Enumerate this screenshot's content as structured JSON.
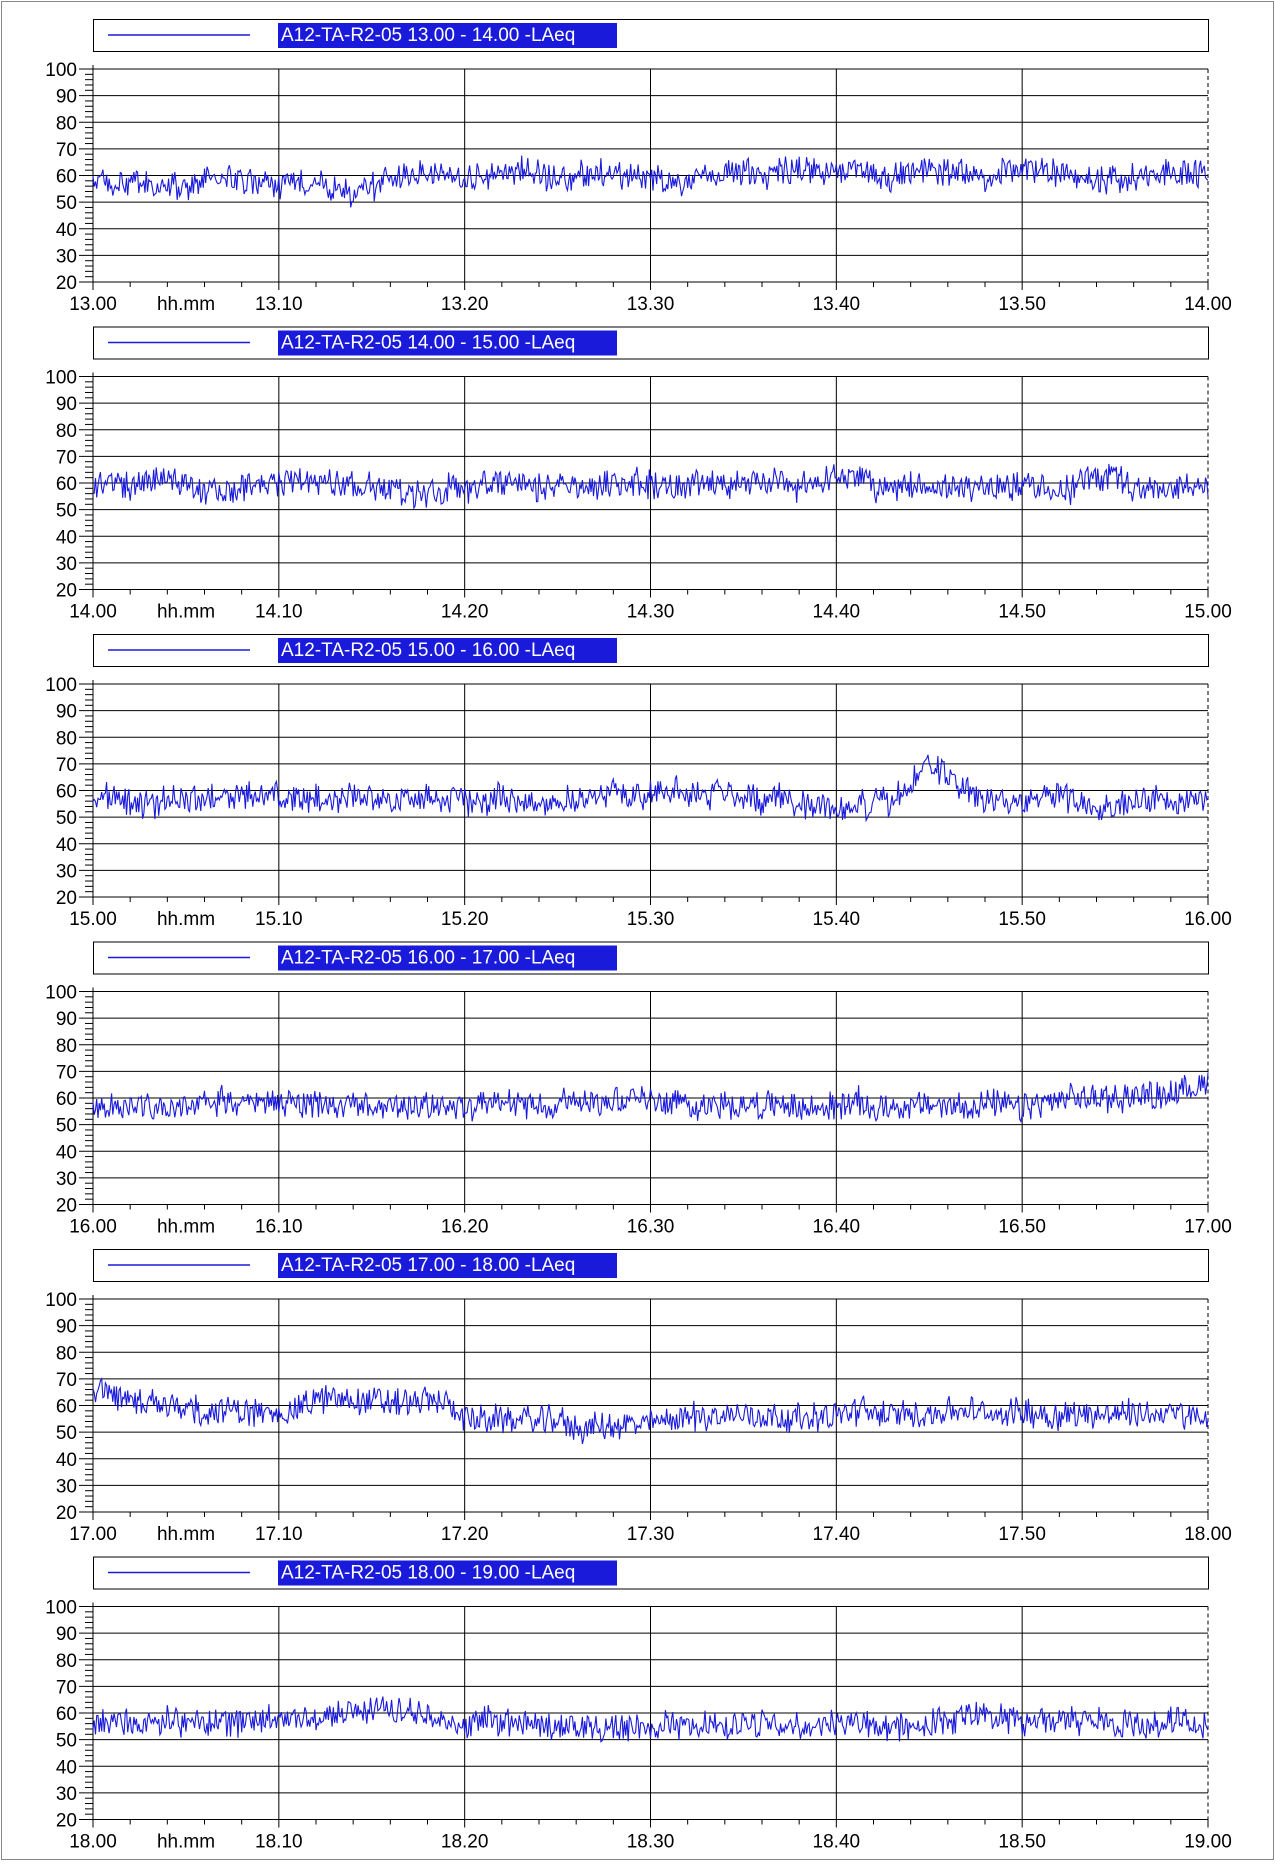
{
  "colors": {
    "series": "#1a1adb",
    "axis": "#000000",
    "legend_highlight": "#1a1adb",
    "legend_text": "#ffffff",
    "background": "#ffffff"
  },
  "chart_data": [
    {
      "type": "line",
      "legend": "A12-TA-R2-05 13.00 - 14.00 -LAeq",
      "xlabel": "hh.mm",
      "x_ticks": [
        "13.00",
        "13.10",
        "13.20",
        "13.30",
        "13.40",
        "13.50",
        "14.00"
      ],
      "y_ticks": [
        "20",
        "30",
        "40",
        "50",
        "60",
        "70",
        "80",
        "90",
        "100"
      ],
      "ylim": [
        20,
        100
      ],
      "x_range_minutes": [
        0,
        60
      ],
      "grid": true,
      "series": [
        {
          "values": [
            58,
            56,
            57,
            56,
            55,
            56,
            58,
            59,
            58,
            57,
            56,
            57,
            58,
            55,
            53,
            56,
            59,
            60,
            61,
            60,
            59,
            60,
            61,
            62,
            60,
            59,
            60,
            61,
            61,
            59,
            60,
            58,
            56,
            59,
            61,
            62,
            60,
            61,
            62,
            61,
            62,
            62,
            60,
            59,
            61,
            62,
            61,
            62,
            60,
            61,
            63,
            62,
            61,
            60,
            58,
            59,
            60,
            61,
            62,
            60,
            61
          ]
        }
      ]
    },
    {
      "type": "line",
      "legend": "A12-TA-R2-05 14.00 - 15.00 -LAeq",
      "xlabel": "hh.mm",
      "x_ticks": [
        "14.00",
        "14.10",
        "14.20",
        "14.30",
        "14.40",
        "14.50",
        "15.00"
      ],
      "y_ticks": [
        "20",
        "30",
        "40",
        "50",
        "60",
        "70",
        "80",
        "90",
        "100"
      ],
      "ylim": [
        20,
        100
      ],
      "x_range_minutes": [
        0,
        60
      ],
      "grid": true,
      "series": [
        {
          "values": [
            60,
            60,
            58,
            61,
            62,
            61,
            58,
            57,
            59,
            60,
            60,
            62,
            61,
            60,
            59,
            58,
            58,
            57,
            56,
            58,
            58,
            59,
            60,
            60,
            58,
            58,
            58,
            59,
            60,
            60,
            59,
            60,
            59,
            60,
            59,
            60,
            60,
            62,
            58,
            60,
            63,
            62,
            58,
            58,
            59,
            58,
            59,
            58,
            59,
            59,
            59,
            58,
            57,
            59,
            63,
            62,
            58,
            57,
            57,
            58,
            58
          ]
        }
      ]
    },
    {
      "type": "line",
      "legend": "A12-TA-R2-05 15.00 - 16.00 -LAeq",
      "xlabel": "hh.mm",
      "x_ticks": [
        "15.00",
        "15.10",
        "15.20",
        "15.30",
        "15.40",
        "15.50",
        "16.00"
      ],
      "y_ticks": [
        "20",
        "30",
        "40",
        "50",
        "60",
        "70",
        "80",
        "90",
        "100"
      ],
      "ylim": [
        20,
        100
      ],
      "x_range_minutes": [
        0,
        60
      ],
      "grid": true,
      "series": [
        {
          "values": [
            56,
            58,
            56,
            55,
            56,
            57,
            57,
            57,
            58,
            58,
            58,
            57,
            57,
            56,
            58,
            57,
            57,
            56,
            58,
            57,
            56,
            56,
            57,
            57,
            55,
            56,
            57,
            57,
            59,
            59,
            59,
            60,
            59,
            58,
            60,
            58,
            56,
            58,
            55,
            55,
            53,
            54,
            55,
            56,
            62,
            70,
            65,
            61,
            55,
            56,
            55,
            59,
            58,
            56,
            55,
            55,
            56,
            57,
            56,
            57,
            56
          ]
        }
      ]
    },
    {
      "type": "line",
      "legend": "A12-TA-R2-05 16.00 - 17.00 -LAeq",
      "xlabel": "hh.mm",
      "x_ticks": [
        "16.00",
        "16.10",
        "16.20",
        "16.30",
        "16.40",
        "16.50",
        "17.00"
      ],
      "y_ticks": [
        "20",
        "30",
        "40",
        "50",
        "60",
        "70",
        "80",
        "90",
        "100"
      ],
      "ylim": [
        20,
        100
      ],
      "x_range_minutes": [
        0,
        60
      ],
      "grid": true,
      "series": [
        {
          "values": [
            55,
            57,
            58,
            57,
            56,
            57,
            58,
            59,
            59,
            58,
            59,
            58,
            58,
            57,
            57,
            56,
            57,
            57,
            57,
            58,
            56,
            57,
            58,
            58,
            57,
            58,
            59,
            59,
            60,
            60,
            59,
            59,
            58,
            57,
            57,
            58,
            57,
            58,
            56,
            56,
            57,
            59,
            56,
            57,
            57,
            57,
            57,
            57,
            58,
            57,
            56,
            58,
            59,
            60,
            60,
            60,
            61,
            61,
            62,
            63,
            66
          ]
        }
      ]
    },
    {
      "type": "line",
      "legend": "A12-TA-R2-05 17.00 - 18.00 -LAeq",
      "xlabel": "hh.mm",
      "x_ticks": [
        "17.00",
        "17.10",
        "17.20",
        "17.30",
        "17.40",
        "17.50",
        "18.00"
      ],
      "y_ticks": [
        "20",
        "30",
        "40",
        "50",
        "60",
        "70",
        "80",
        "90",
        "100"
      ],
      "ylim": [
        20,
        100
      ],
      "x_range_minutes": [
        0,
        60
      ],
      "grid": true,
      "series": [
        {
          "values": [
            68,
            63,
            62,
            61,
            60,
            59,
            58,
            58,
            58,
            57,
            57,
            59,
            62,
            63,
            62,
            62,
            61,
            61,
            62,
            61,
            56,
            54,
            55,
            55,
            54,
            55,
            51,
            52,
            52,
            53,
            53,
            55,
            56,
            56,
            56,
            57,
            56,
            56,
            55,
            56,
            56,
            58,
            58,
            56,
            57,
            57,
            58,
            58,
            57,
            57,
            58,
            57,
            56,
            57,
            57,
            57,
            57,
            57,
            57,
            56,
            55
          ]
        }
      ]
    },
    {
      "type": "line",
      "legend": "A12-TA-R2-05 18.00 - 19.00 -LAeq",
      "xlabel": "hh.mm",
      "x_ticks": [
        "18.00",
        "18.10",
        "18.20",
        "18.30",
        "18.40",
        "18.50",
        "19.00"
      ],
      "y_ticks": [
        "20",
        "30",
        "40",
        "50",
        "60",
        "70",
        "80",
        "90",
        "100"
      ],
      "ylim": [
        20,
        100
      ],
      "x_range_minutes": [
        0,
        60
      ],
      "grid": true,
      "series": [
        {
          "values": [
            56,
            57,
            57,
            58,
            57,
            56,
            56,
            57,
            57,
            58,
            58,
            58,
            58,
            59,
            60,
            61,
            62,
            61,
            58,
            56,
            55,
            58,
            57,
            58,
            56,
            55,
            53,
            54,
            55,
            55,
            55,
            56,
            55,
            55,
            54,
            56,
            56,
            55,
            56,
            56,
            57,
            56,
            55,
            54,
            55,
            56,
            57,
            58,
            59,
            58,
            57,
            57,
            58,
            57,
            57,
            55,
            56,
            56,
            57,
            57,
            56
          ]
        }
      ]
    }
  ]
}
